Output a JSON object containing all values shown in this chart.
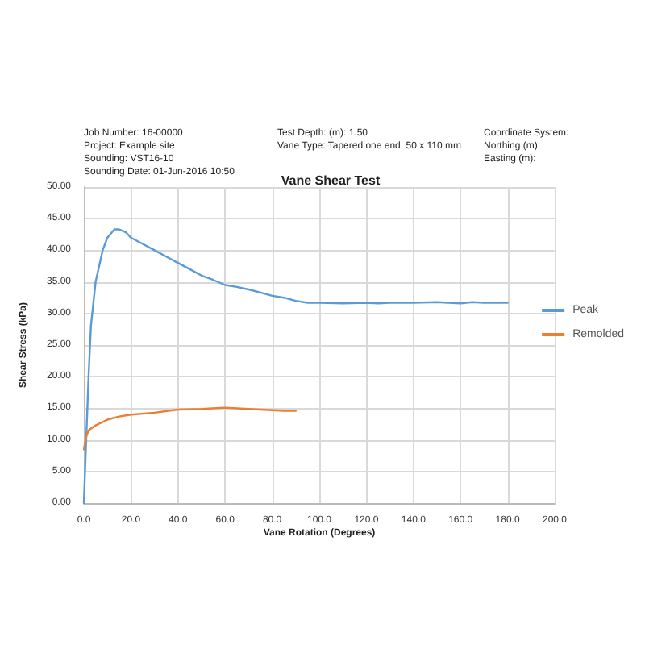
{
  "chart_data": {
    "type": "line",
    "title": "Vane Shear Test",
    "xlabel": "Vane Rotation (Degrees)",
    "ylabel": "Shear Stress (kPa)",
    "annotations": [
      "Job Number: 16-00000",
      "Project: Example site",
      "Sounding: VST16-10",
      "Sounding Date: 01-Jun-2016 10:50",
      "Test Depth: (m): 1.50",
      "Vane Type: Tapered one end  50 x 110 mm",
      "Coordinate System:",
      "Northing (m):",
      "Easting (m):"
    ],
    "xlim": [
      0,
      200
    ],
    "xticks": [
      {
        "value": 0,
        "label": "0.0"
      },
      {
        "value": 20,
        "label": "20.0"
      },
      {
        "value": 40,
        "label": "40.0"
      },
      {
        "value": 60,
        "label": "60.0"
      },
      {
        "value": 80,
        "label": "80.0"
      },
      {
        "value": 100,
        "label": "100.0"
      },
      {
        "value": 120,
        "label": "120.0"
      },
      {
        "value": 140,
        "label": "140.0"
      },
      {
        "value": 160,
        "label": "160.0"
      },
      {
        "value": 180,
        "label": "180.0"
      },
      {
        "value": 200,
        "label": "200.0"
      }
    ],
    "ylim": [
      0,
      50
    ],
    "yticks": [
      {
        "value": 0,
        "label": "0.00"
      },
      {
        "value": 5,
        "label": "5.00"
      },
      {
        "value": 10,
        "label": "10.00"
      },
      {
        "value": 15,
        "label": "15.00"
      },
      {
        "value": 20,
        "label": "20.00"
      },
      {
        "value": 25,
        "label": "25.00"
      },
      {
        "value": 30,
        "label": "30.00"
      },
      {
        "value": 35,
        "label": "35.00"
      },
      {
        "value": 40,
        "label": "40.00"
      },
      {
        "value": 45,
        "label": "45.00"
      },
      {
        "value": 50,
        "label": "50.00"
      }
    ],
    "grid": true,
    "legend": "right",
    "marker": "none",
    "line_style": "solid",
    "series": [
      {
        "name": "Peak",
        "color": "#5b9bd5",
        "x": [
          0,
          1,
          2,
          3,
          5,
          8,
          10,
          13,
          15,
          18,
          20,
          25,
          30,
          35,
          40,
          45,
          50,
          55,
          60,
          65,
          70,
          75,
          80,
          85,
          90,
          95,
          100,
          110,
          120,
          125,
          130,
          140,
          150,
          160,
          165,
          170,
          180
        ],
        "values": [
          0,
          10,
          20,
          28,
          35,
          40,
          42,
          43.3,
          43.3,
          42.8,
          42,
          41,
          40,
          39,
          38,
          37,
          36,
          35.3,
          34.5,
          34.2,
          33.8,
          33.3,
          32.8,
          32.5,
          32,
          31.7,
          31.7,
          31.6,
          31.7,
          31.6,
          31.7,
          31.7,
          31.8,
          31.6,
          31.8,
          31.7,
          31.7
        ]
      },
      {
        "name": "Remolded",
        "color": "#ed7d31",
        "x": [
          0,
          1,
          2,
          5,
          10,
          15,
          20,
          30,
          40,
          50,
          60,
          70,
          80,
          85,
          90
        ],
        "values": [
          8.5,
          10.5,
          11.5,
          12.3,
          13.2,
          13.7,
          14,
          14.3,
          14.8,
          14.9,
          15.1,
          14.9,
          14.7,
          14.6,
          14.6
        ]
      }
    ]
  }
}
